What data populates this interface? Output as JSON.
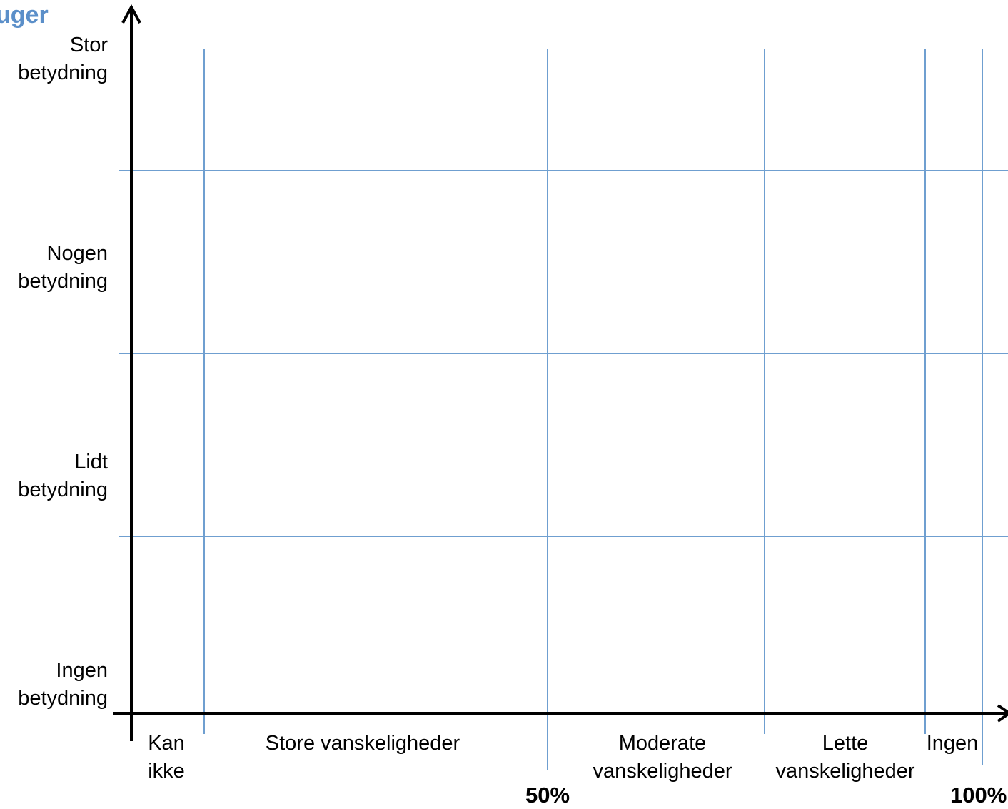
{
  "corner_text": "uger",
  "colors": {
    "grid": "#6f9fd0",
    "axis": "#000000",
    "accent": "#5b8fc9"
  },
  "y_levels": [
    {
      "line1": "Stor",
      "line2": "betydning"
    },
    {
      "line1": "Nogen",
      "line2": "betydning"
    },
    {
      "line1": "Lidt",
      "line2": "betydning"
    },
    {
      "line1": "Ingen",
      "line2": "betydning"
    }
  ],
  "x_categories": [
    {
      "line1": "Kan",
      "line2": "ikke"
    },
    {
      "line1": "Store vanskeligheder",
      "line2": ""
    },
    {
      "line1": "Moderate",
      "line2": "vanskeligheder"
    },
    {
      "line1": "Lette",
      "line2": "vanskeligheder"
    },
    {
      "line1": "Ingen",
      "line2": ""
    }
  ],
  "x_markers": [
    "50%",
    "100%"
  ]
}
